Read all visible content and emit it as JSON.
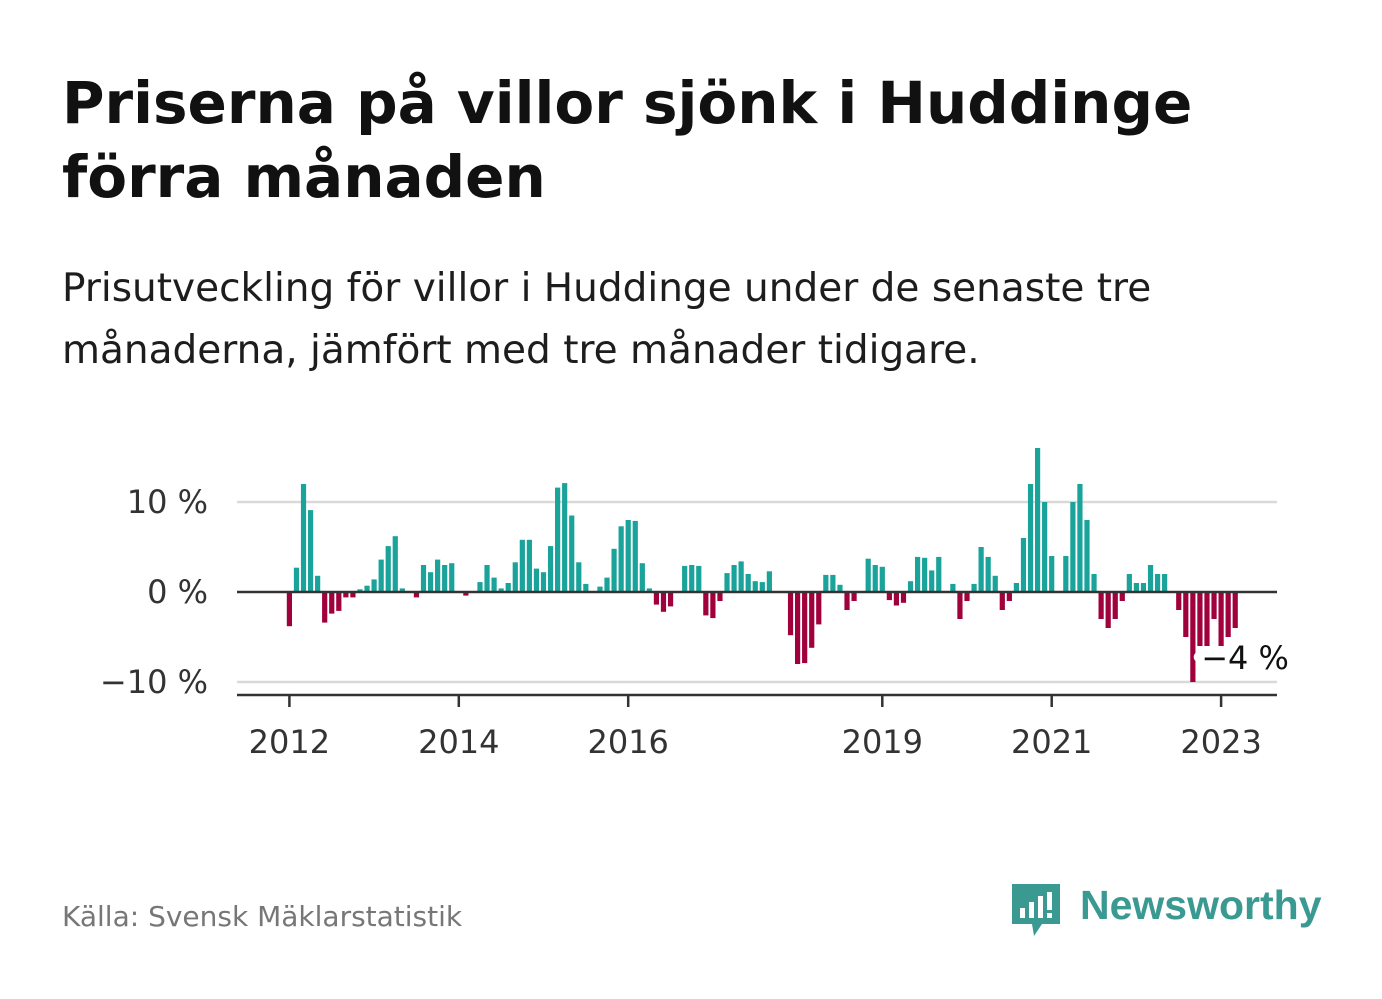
{
  "header": {
    "title": "Priserna på villor sjönk i Huddinge förra månaden",
    "subtitle": "Prisutveckling för villor i Huddinge under de senaste tre månaderna, jämfört med tre månader tidigare."
  },
  "footer": {
    "source": "Källa: Svensk Mäklarstatistik",
    "brand": "Newsworthy"
  },
  "colors": {
    "positive": "#1aa39a",
    "negative": "#a0003c",
    "brand": "#3a9a92",
    "grid": "#d9d9d9",
    "zero_line": "#333333"
  },
  "chart_data": {
    "type": "bar",
    "title": "Priserna på villor sjönk i Huddinge förra månaden",
    "subtitle": "Prisutveckling för villor i Huddinge under de senaste tre månaderna, jämfört med tre månader tidigare.",
    "unit": "%",
    "first_month": "2012-01",
    "last_month": "2023-03",
    "ylim": [
      -11,
      16.5
    ],
    "grid": true,
    "y_ticks": [
      {
        "value": 10,
        "label": "10 %"
      },
      {
        "value": 0,
        "label": "0 %"
      },
      {
        "value": -10,
        "label": "−10 %"
      }
    ],
    "x_ticks": [
      {
        "year": 2012,
        "label": "2012"
      },
      {
        "year": 2014,
        "label": "2014"
      },
      {
        "year": 2016,
        "label": "2016"
      },
      {
        "year": 2019,
        "label": "2019"
      },
      {
        "year": 2021,
        "label": "2021"
      },
      {
        "year": 2023,
        "label": "2023"
      }
    ],
    "values": [
      -3.8,
      2.7,
      12.0,
      9.1,
      1.8,
      -3.4,
      -2.4,
      -2.1,
      -0.6,
      -0.6,
      0.3,
      0.7,
      1.4,
      3.6,
      5.1,
      6.2,
      0.4,
      0,
      -0.6,
      3.0,
      2.2,
      3.6,
      3.0,
      3.2,
      0,
      -0.4,
      0,
      1.1,
      3.0,
      1.6,
      0.4,
      1.0,
      3.3,
      5.8,
      5.8,
      2.6,
      2.2,
      5.1,
      11.6,
      12.1,
      8.5,
      3.3,
      0.9,
      0,
      0.6,
      1.6,
      4.8,
      7.3,
      8.0,
      7.9,
      3.2,
      0.4,
      -1.4,
      -2.2,
      -1.6,
      0,
      2.9,
      3.0,
      2.9,
      -2.6,
      -2.9,
      -1.0,
      2.1,
      3.0,
      3.4,
      2.0,
      1.2,
      1.1,
      2.3,
      0,
      0,
      -4.8,
      -8.0,
      -7.9,
      -6.2,
      -3.6,
      1.9,
      1.9,
      0.8,
      -2.0,
      -1.0,
      0,
      3.7,
      3.0,
      2.8,
      -0.9,
      -1.5,
      -1.2,
      1.2,
      3.9,
      3.8,
      2.4,
      3.9,
      0,
      0.9,
      -3.0,
      -1.0,
      0.9,
      5.0,
      3.9,
      1.8,
      -2.0,
      -1.0,
      1.0,
      6.0,
      12.0,
      16.0,
      10.0,
      4.0,
      0,
      4.0,
      10.0,
      12.0,
      8.0,
      2.0,
      -3.0,
      -4.0,
      -3.0,
      -1.0,
      2.0,
      1.0,
      1.0,
      3.0,
      2.0,
      2.0,
      0,
      -2.0,
      -5.0,
      -10.0,
      -6.0,
      -6.0,
      -3.0,
      -6.0,
      -5.0,
      -4.0
    ],
    "annotation": {
      "month": "2023-03",
      "value": -4,
      "label": "−4 %"
    }
  }
}
